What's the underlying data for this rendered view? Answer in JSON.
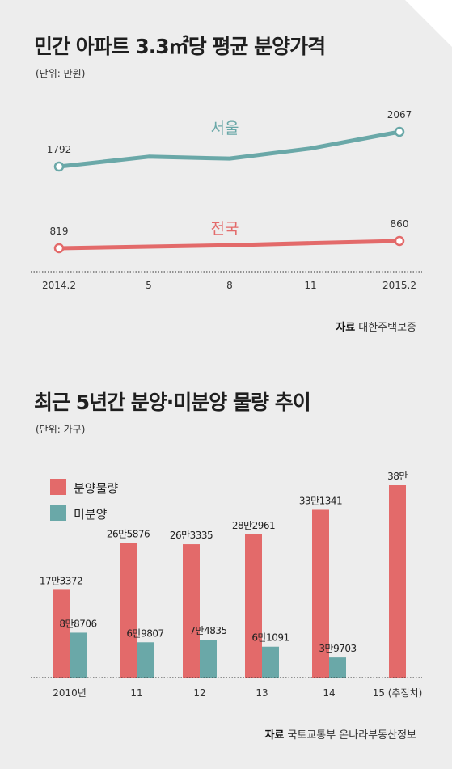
{
  "chart1": {
    "title": "민간 아파트 3.3㎡당 평균 분양가격",
    "unit": "(단위: 만원)",
    "source_label": "자료",
    "source_text": "대한주택보증",
    "colors": {
      "seoul": "#6aa8a8",
      "national": "#e36a6a"
    },
    "chart_data": {
      "type": "line",
      "categories": [
        "2014.2",
        "5",
        "8",
        "11",
        "2015.2"
      ],
      "series": [
        {
          "name": "서울",
          "values": [
            1792,
            1870,
            1855,
            1935,
            2067
          ],
          "labels": [
            "1792",
            null,
            null,
            null,
            "2067"
          ]
        },
        {
          "name": "전국",
          "values": [
            819,
            828,
            836,
            848,
            860
          ],
          "labels": [
            "819",
            null,
            null,
            null,
            "860"
          ]
        }
      ]
    }
  },
  "chart2": {
    "title": "최근 5년간 분양·미분양 물량 추이",
    "unit": "(단위: 가구)",
    "source_label": "자료",
    "source_text": "국토교통부 온나라부동산정보",
    "colors": {
      "sale": "#e36a6a",
      "unsold": "#6aa8a8"
    },
    "chart_data": {
      "type": "bar",
      "categories": [
        "2010년",
        "11",
        "12",
        "13",
        "14",
        "15 (추정치)"
      ],
      "series": [
        {
          "name": "분양물량",
          "values": [
            173372,
            265876,
            263335,
            282961,
            331341,
            380000
          ],
          "labels": [
            "17만3372",
            "26만5876",
            "26만3335",
            "28만2961",
            "33만1341",
            "38만"
          ]
        },
        {
          "name": "미분양",
          "values": [
            88706,
            69807,
            74835,
            61091,
            39703,
            null
          ],
          "labels": [
            "8만8706",
            "6만9807",
            "7만4835",
            "6만1091",
            "3만9703",
            null
          ]
        }
      ]
    }
  }
}
